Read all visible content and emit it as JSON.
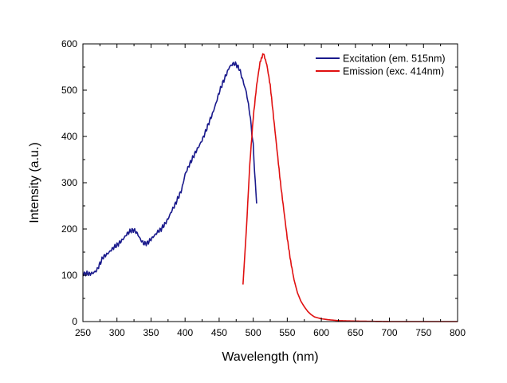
{
  "chart_data": {
    "type": "line",
    "title": "",
    "xlabel": "Wavelength (nm)",
    "ylabel": "Intensity (a.u.)",
    "xlim": [
      250,
      800
    ],
    "ylim": [
      0,
      600
    ],
    "xticks": [
      250,
      300,
      350,
      400,
      450,
      500,
      550,
      600,
      650,
      700,
      750,
      800
    ],
    "yticks": [
      0,
      100,
      200,
      300,
      400,
      500,
      600
    ],
    "grid": false,
    "legend_position": "top-right",
    "series": [
      {
        "name": "Excitation (em. 515nm)",
        "color": "#1a1a8c",
        "points": [
          [
            250,
            103
          ],
          [
            255,
            104
          ],
          [
            260,
            103
          ],
          [
            265,
            105
          ],
          [
            270,
            110
          ],
          [
            275,
            125
          ],
          [
            280,
            140
          ],
          [
            285,
            145
          ],
          [
            290,
            152
          ],
          [
            295,
            160
          ],
          [
            300,
            165
          ],
          [
            305,
            172
          ],
          [
            310,
            180
          ],
          [
            315,
            190
          ],
          [
            320,
            196
          ],
          [
            325,
            198
          ],
          [
            330,
            190
          ],
          [
            335,
            176
          ],
          [
            340,
            168
          ],
          [
            345,
            170
          ],
          [
            350,
            178
          ],
          [
            355,
            186
          ],
          [
            360,
            194
          ],
          [
            365,
            200
          ],
          [
            370,
            210
          ],
          [
            375,
            222
          ],
          [
            380,
            238
          ],
          [
            385,
            252
          ],
          [
            390,
            268
          ],
          [
            395,
            285
          ],
          [
            400,
            318
          ],
          [
            405,
            335
          ],
          [
            410,
            350
          ],
          [
            415,
            365
          ],
          [
            420,
            378
          ],
          [
            425,
            392
          ],
          [
            430,
            410
          ],
          [
            435,
            430
          ],
          [
            440,
            448
          ],
          [
            445,
            470
          ],
          [
            450,
            495
          ],
          [
            455,
            515
          ],
          [
            460,
            532
          ],
          [
            465,
            550
          ],
          [
            470,
            557
          ],
          [
            475,
            556
          ],
          [
            480,
            545
          ],
          [
            485,
            520
          ],
          [
            490,
            495
          ],
          [
            495,
            450
          ],
          [
            500,
            380
          ],
          [
            503,
            300
          ],
          [
            505,
            255
          ]
        ]
      },
      {
        "name": "Emission (exc. 414nm)",
        "color": "#e01010",
        "points": [
          [
            485,
            80
          ],
          [
            490,
            200
          ],
          [
            495,
            340
          ],
          [
            500,
            440
          ],
          [
            505,
            510
          ],
          [
            510,
            560
          ],
          [
            515,
            580
          ],
          [
            520,
            555
          ],
          [
            525,
            510
          ],
          [
            530,
            440
          ],
          [
            535,
            370
          ],
          [
            540,
            300
          ],
          [
            545,
            240
          ],
          [
            550,
            180
          ],
          [
            555,
            130
          ],
          [
            560,
            90
          ],
          [
            565,
            62
          ],
          [
            570,
            44
          ],
          [
            575,
            32
          ],
          [
            580,
            22
          ],
          [
            585,
            15
          ],
          [
            590,
            10
          ],
          [
            600,
            6
          ],
          [
            610,
            4
          ],
          [
            625,
            2
          ],
          [
            650,
            1
          ],
          [
            700,
            0
          ],
          [
            750,
            0
          ],
          [
            800,
            0
          ]
        ]
      }
    ]
  }
}
